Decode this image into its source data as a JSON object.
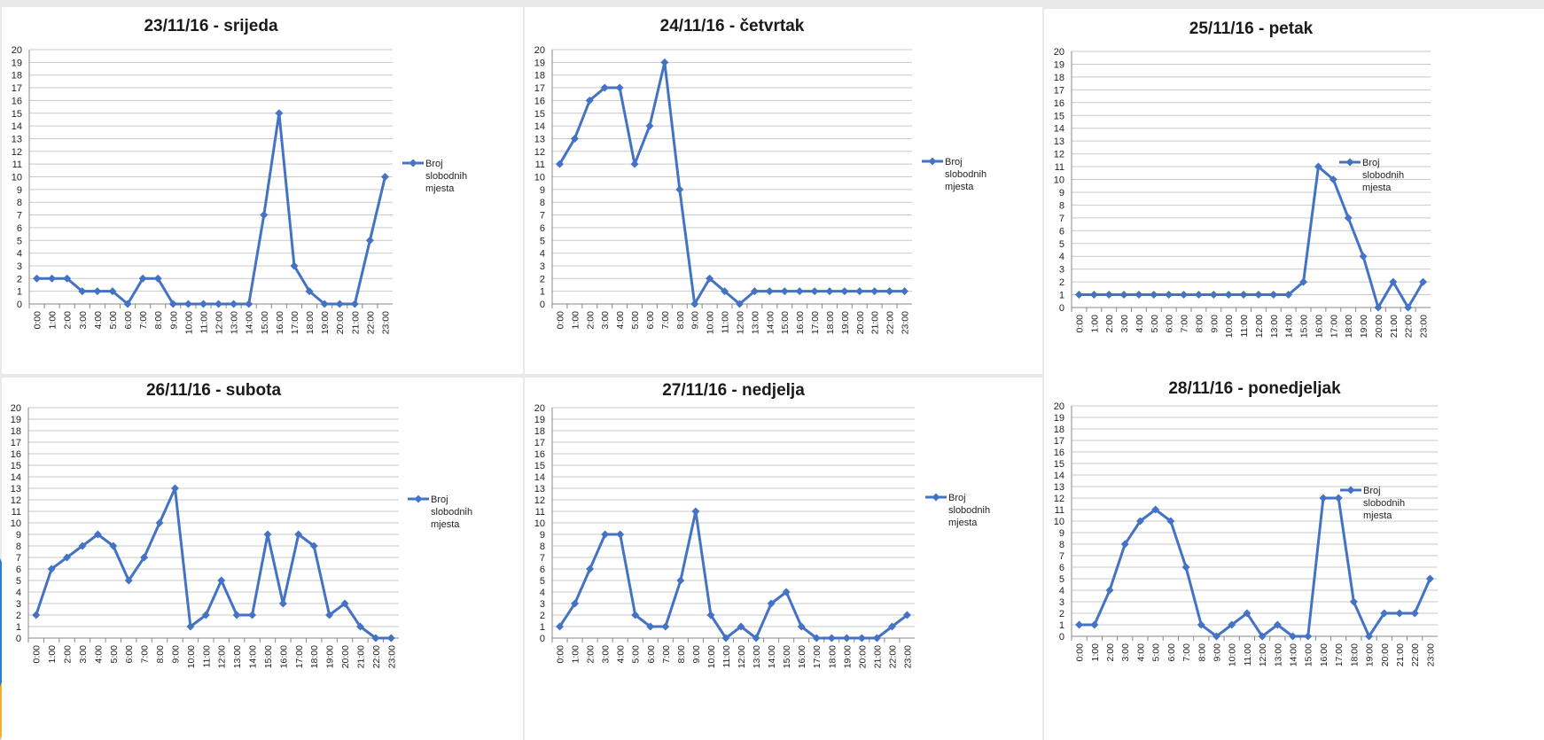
{
  "colors": {
    "series": "#4472c4",
    "grid": "#c9c9c9",
    "axis": "#888888"
  },
  "chart_data": [
    {
      "type": "line",
      "title": "23/11/16 - srijeda",
      "categories": [
        "0:00",
        "1:00",
        "2:00",
        "3:00",
        "4:00",
        "5:00",
        "6:00",
        "7:00",
        "8:00",
        "9:00",
        "10:00",
        "11:00",
        "12:00",
        "13:00",
        "14:00",
        "15:00",
        "16:00",
        "17:00",
        "18:00",
        "19:00",
        "20:00",
        "21:00",
        "22:00",
        "23:00"
      ],
      "ylim": [
        0,
        20
      ],
      "grid": true,
      "legend_position": "right",
      "series": [
        {
          "name": "Broj slobodnih mjesta",
          "values": [
            2,
            2,
            2,
            1,
            1,
            1,
            0,
            2,
            2,
            0,
            0,
            0,
            0,
            0,
            0,
            7,
            15,
            3,
            1,
            0,
            0,
            0,
            5,
            10
          ]
        }
      ]
    },
    {
      "type": "line",
      "title": "24/11/16 - četvrtak",
      "categories": [
        "0:00",
        "1:00",
        "2:00",
        "3:00",
        "4:00",
        "5:00",
        "6:00",
        "7:00",
        "8:00",
        "9:00",
        "10:00",
        "11:00",
        "12:00",
        "13:00",
        "14:00",
        "15:00",
        "16:00",
        "17:00",
        "18:00",
        "19:00",
        "20:00",
        "21:00",
        "22:00",
        "23:00"
      ],
      "ylim": [
        0,
        20
      ],
      "grid": true,
      "legend_position": "right",
      "series": [
        {
          "name": "Broj slobodnih mjesta",
          "values": [
            11,
            13,
            16,
            17,
            17,
            11,
            14,
            19,
            9,
            0,
            2,
            1,
            0,
            1,
            1,
            1,
            1,
            1,
            1,
            1,
            1,
            1,
            1,
            1
          ]
        }
      ]
    },
    {
      "type": "line",
      "title": "25/11/16 - petak",
      "categories": [
        "0:00",
        "1:00",
        "2:00",
        "3:00",
        "4:00",
        "5:00",
        "6:00",
        "7:00",
        "8:00",
        "9:00",
        "10:00",
        "11:00",
        "12:00",
        "13:00",
        "14:00",
        "15:00",
        "16:00",
        "17:00",
        "18:00",
        "19:00",
        "20:00",
        "21:00",
        "22:00",
        "23:00"
      ],
      "ylim": [
        0,
        20
      ],
      "grid": true,
      "legend_position": "right",
      "series": [
        {
          "name": "Broj slobodnih mjesta",
          "values": [
            1,
            1,
            1,
            1,
            1,
            1,
            1,
            1,
            1,
            1,
            1,
            1,
            1,
            1,
            1,
            2,
            11,
            10,
            7,
            4,
            0,
            2,
            0,
            2
          ]
        }
      ]
    },
    {
      "type": "line",
      "title": "26/11/16 - subota",
      "categories": [
        "0:00",
        "1:00",
        "2:00",
        "3:00",
        "4:00",
        "5:00",
        "6:00",
        "7:00",
        "8:00",
        "9:00",
        "10:00",
        "11:00",
        "12:00",
        "13:00",
        "14:00",
        "15:00",
        "16:00",
        "17:00",
        "18:00",
        "19:00",
        "20:00",
        "21:00",
        "22:00",
        "23:00"
      ],
      "ylim": [
        0,
        20
      ],
      "grid": true,
      "legend_position": "right",
      "series": [
        {
          "name": "Broj slobodnih mjesta",
          "values": [
            2,
            6,
            7,
            8,
            9,
            8,
            5,
            7,
            10,
            13,
            1,
            2,
            5,
            2,
            2,
            9,
            3,
            9,
            8,
            2,
            3,
            1,
            0,
            0
          ]
        }
      ]
    },
    {
      "type": "line",
      "title": "27/11/16 - nedjelja",
      "categories": [
        "0:00",
        "1:00",
        "2:00",
        "3:00",
        "4:00",
        "5:00",
        "6:00",
        "7:00",
        "8:00",
        "9:00",
        "10:00",
        "11:00",
        "12:00",
        "13:00",
        "14:00",
        "15:00",
        "16:00",
        "17:00",
        "18:00",
        "19:00",
        "20:00",
        "21:00",
        "22:00",
        "23:00"
      ],
      "ylim": [
        0,
        20
      ],
      "grid": true,
      "legend_position": "right",
      "series": [
        {
          "name": "Broj slobodnih mjesta",
          "values": [
            1,
            3,
            6,
            9,
            9,
            2,
            1,
            1,
            5,
            11,
            2,
            0,
            1,
            0,
            3,
            4,
            1,
            0,
            0,
            0,
            0,
            0,
            1,
            2
          ]
        }
      ]
    },
    {
      "type": "line",
      "title": "28/11/16 - ponedjeljak",
      "categories": [
        "0:00",
        "1:00",
        "2:00",
        "3:00",
        "4:00",
        "5:00",
        "6:00",
        "7:00",
        "8:00",
        "9:00",
        "10:00",
        "11:00",
        "12:00",
        "13:00",
        "14:00",
        "15:00",
        "16:00",
        "17:00",
        "18:00",
        "19:00",
        "20:00",
        "21:00",
        "22:00",
        "23:00"
      ],
      "ylim": [
        0,
        20
      ],
      "grid": true,
      "legend_position": "right",
      "series": [
        {
          "name": "Broj slobodnih mjesta",
          "values": [
            1,
            1,
            4,
            8,
            10,
            11,
            10,
            6,
            1,
            0,
            1,
            2,
            0,
            1,
            0,
            0,
            12,
            12,
            3,
            0,
            2,
            2,
            2,
            5
          ]
        }
      ]
    }
  ]
}
